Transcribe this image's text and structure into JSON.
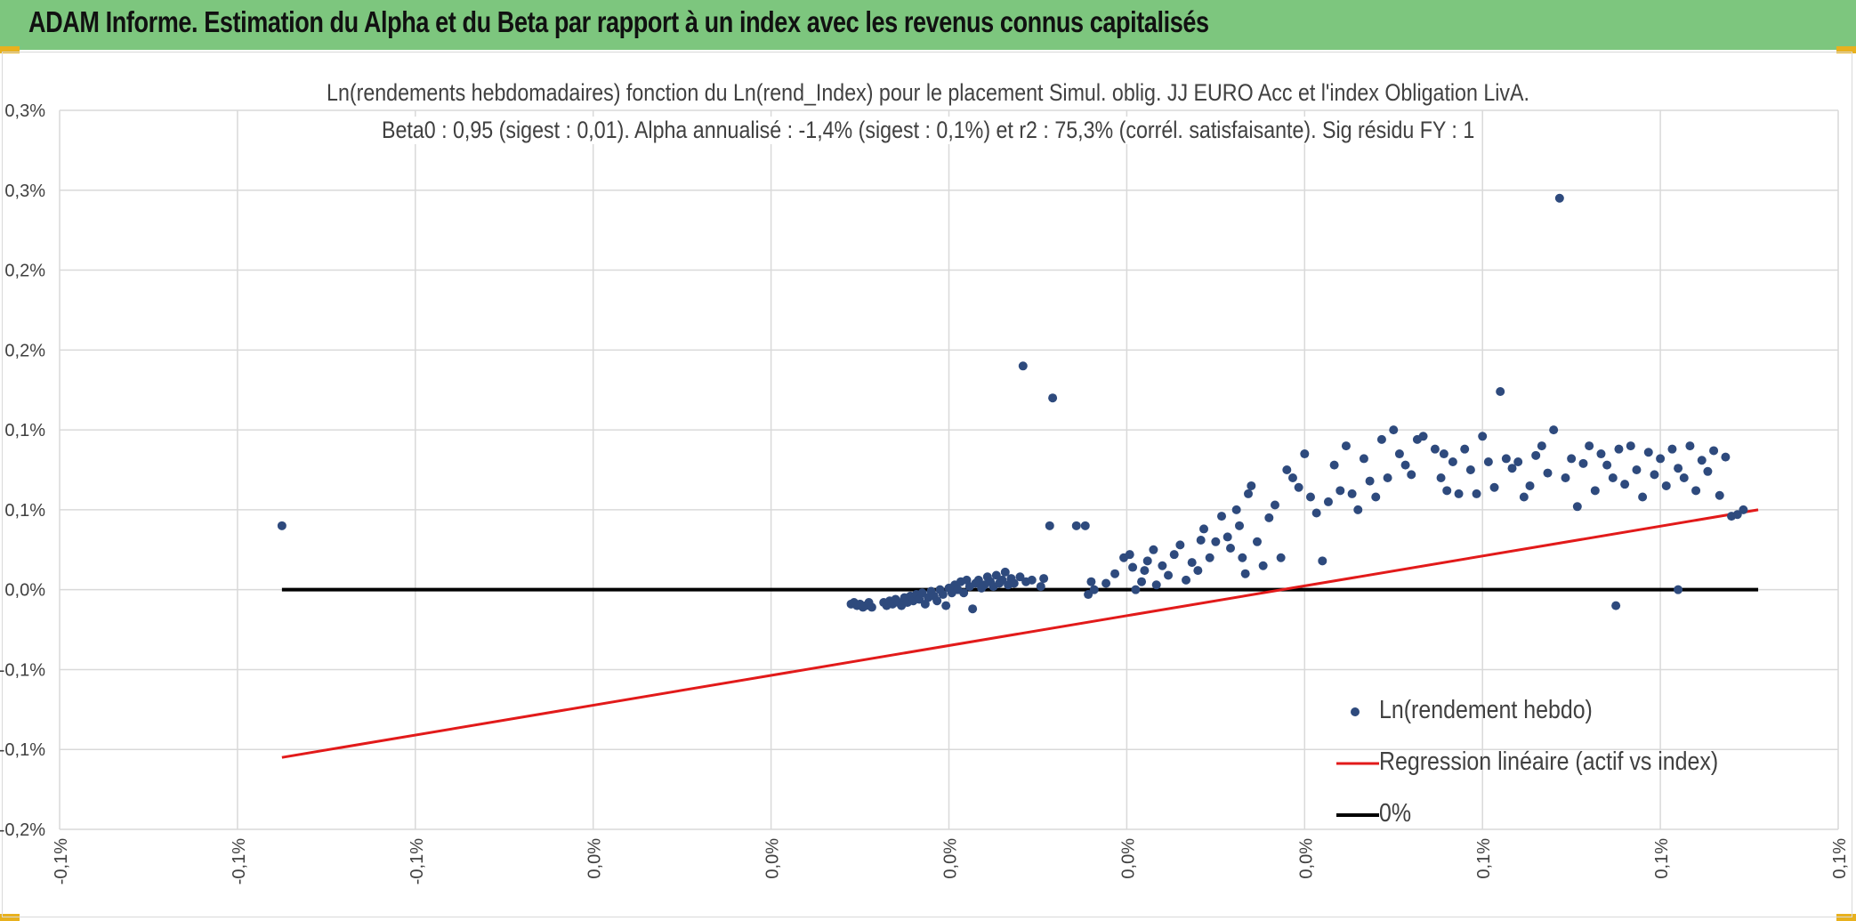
{
  "header": {
    "title": "ADAM Informe. Estimation du Alpha et du Beta par rapport à un index avec les revenus connus capitalisés"
  },
  "chart_data": {
    "type": "scatter",
    "title_line1": "Ln(rendements hebdomadaires) fonction du Ln(rend_Index) pour le placement Simul. oblig. JJ EURO Acc et l'index Obligation LivA.",
    "title_line2": "Beta0 : 0,95 (sigest : 0,01). Alpha annualisé : -1,4% (sigest : 0,1%) et r2 : 75,3% (corrél. satisfaisante). Sig résidu FY : 1",
    "xlabel": "",
    "ylabel": "",
    "xlim": [
      -0.15,
      0.15
    ],
    "ylim": [
      -0.15,
      0.3
    ],
    "x_tick_labels": [
      "-0,1%",
      "-0,1%",
      "-0,1%",
      "0,0%",
      "0,0%",
      "0,0%",
      "0,0%",
      "0,0%",
      "0,1%",
      "0,1%",
      "0,1%"
    ],
    "y_tick_labels": [
      "-0,2%",
      "-0,1%",
      "-0,1%",
      "0,0%",
      "0,1%",
      "0,1%",
      "0,2%",
      "0,2%",
      "0,3%",
      "0,3%"
    ],
    "grid": true,
    "legend_position": "bottom-right",
    "series": [
      {
        "name": "Ln(rendement hebdo)",
        "kind": "scatter",
        "color": "#2e4a7d",
        "points": [
          [
            -0.1125,
            0.04
          ],
          [
            0.0175,
            0.12
          ],
          [
            0.0125,
            0.14
          ],
          [
            0.1125,
            -0.01
          ],
          [
            0.123,
            0.0
          ],
          [
            -0.0165,
            -0.009
          ],
          [
            -0.016,
            -0.008
          ],
          [
            -0.0155,
            -0.01
          ],
          [
            -0.015,
            -0.009
          ],
          [
            -0.0145,
            -0.011
          ],
          [
            -0.014,
            -0.01
          ],
          [
            -0.0135,
            -0.008
          ],
          [
            -0.013,
            -0.011
          ],
          [
            -0.011,
            -0.008
          ],
          [
            -0.0105,
            -0.01
          ],
          [
            -0.01,
            -0.007
          ],
          [
            -0.0095,
            -0.009
          ],
          [
            -0.009,
            -0.006
          ],
          [
            -0.0085,
            -0.008
          ],
          [
            -0.008,
            -0.01
          ],
          [
            -0.0075,
            -0.005
          ],
          [
            -0.007,
            -0.008
          ],
          [
            -0.0065,
            -0.004
          ],
          [
            -0.006,
            -0.007
          ],
          [
            -0.0055,
            -0.003
          ],
          [
            -0.005,
            -0.006
          ],
          [
            -0.0045,
            -0.002
          ],
          [
            -0.004,
            -0.009
          ],
          [
            -0.0035,
            -0.005
          ],
          [
            -0.003,
            -0.001
          ],
          [
            -0.0025,
            -0.004
          ],
          [
            -0.002,
            -0.007
          ],
          [
            -0.0015,
            0.0
          ],
          [
            -0.001,
            -0.003
          ],
          [
            -0.0005,
            -0.01
          ],
          [
            0.0,
            0.001
          ],
          [
            0.0005,
            -0.002
          ],
          [
            0.001,
            0.003
          ],
          [
            0.0015,
            0.0
          ],
          [
            0.002,
            0.005
          ],
          [
            0.0025,
            -0.002
          ],
          [
            0.003,
            0.006
          ],
          [
            0.0035,
            0.002
          ],
          [
            0.004,
            -0.012
          ],
          [
            0.0045,
            0.004
          ],
          [
            0.005,
            0.006
          ],
          [
            0.0055,
            0.001
          ],
          [
            0.006,
            0.003
          ],
          [
            0.0065,
            0.008
          ],
          [
            0.007,
            0.005
          ],
          [
            0.0075,
            0.002
          ],
          [
            0.008,
            0.009
          ],
          [
            0.0085,
            0.004
          ],
          [
            0.009,
            0.006
          ],
          [
            0.0095,
            0.011
          ],
          [
            0.01,
            0.003
          ],
          [
            0.0105,
            0.007
          ],
          [
            0.011,
            0.004
          ],
          [
            0.012,
            0.008
          ],
          [
            0.013,
            0.005
          ],
          [
            0.014,
            0.006
          ],
          [
            0.0155,
            0.002
          ],
          [
            0.016,
            0.007
          ],
          [
            0.017,
            0.04
          ],
          [
            0.0215,
            0.04
          ],
          [
            0.023,
            0.04
          ],
          [
            0.0235,
            -0.003
          ],
          [
            0.024,
            0.005
          ],
          [
            0.0245,
            0.0
          ],
          [
            0.0265,
            0.004
          ],
          [
            0.028,
            0.01
          ],
          [
            0.0295,
            0.02
          ],
          [
            0.0305,
            0.022
          ],
          [
            0.031,
            0.014
          ],
          [
            0.0315,
            0.0
          ],
          [
            0.0325,
            0.005
          ],
          [
            0.033,
            0.012
          ],
          [
            0.0335,
            0.018
          ],
          [
            0.0345,
            0.025
          ],
          [
            0.035,
            0.003
          ],
          [
            0.036,
            0.015
          ],
          [
            0.037,
            0.009
          ],
          [
            0.038,
            0.022
          ],
          [
            0.039,
            0.028
          ],
          [
            0.04,
            0.006
          ],
          [
            0.041,
            0.017
          ],
          [
            0.042,
            0.012
          ],
          [
            0.0425,
            0.031
          ],
          [
            0.043,
            0.038
          ],
          [
            0.044,
            0.02
          ],
          [
            0.045,
            0.03
          ],
          [
            0.046,
            0.046
          ],
          [
            0.047,
            0.033
          ],
          [
            0.0475,
            0.026
          ],
          [
            0.0485,
            0.05
          ],
          [
            0.049,
            0.04
          ],
          [
            0.0495,
            0.02
          ],
          [
            0.05,
            0.01
          ],
          [
            0.0505,
            0.06
          ],
          [
            0.051,
            0.065
          ],
          [
            0.052,
            0.03
          ],
          [
            0.053,
            0.015
          ],
          [
            0.054,
            0.045
          ],
          [
            0.055,
            0.053
          ],
          [
            0.056,
            0.02
          ],
          [
            0.057,
            0.075
          ],
          [
            0.058,
            0.07
          ],
          [
            0.059,
            0.064
          ],
          [
            0.06,
            0.085
          ],
          [
            0.061,
            0.058
          ],
          [
            0.062,
            0.048
          ],
          [
            0.063,
            0.018
          ],
          [
            0.064,
            0.055
          ],
          [
            0.065,
            0.078
          ],
          [
            0.066,
            0.062
          ],
          [
            0.067,
            0.09
          ],
          [
            0.068,
            0.06
          ],
          [
            0.069,
            0.05
          ],
          [
            0.07,
            0.082
          ],
          [
            0.071,
            0.068
          ],
          [
            0.072,
            0.058
          ],
          [
            0.073,
            0.094
          ],
          [
            0.074,
            0.07
          ],
          [
            0.075,
            0.1
          ],
          [
            0.076,
            0.085
          ],
          [
            0.077,
            0.078
          ],
          [
            0.078,
            0.072
          ],
          [
            0.079,
            0.094
          ],
          [
            0.08,
            0.096
          ],
          [
            0.082,
            0.088
          ],
          [
            0.083,
            0.07
          ],
          [
            0.0835,
            0.085
          ],
          [
            0.084,
            0.062
          ],
          [
            0.085,
            0.08
          ],
          [
            0.086,
            0.06
          ],
          [
            0.087,
            0.088
          ],
          [
            0.088,
            0.075
          ],
          [
            0.089,
            0.06
          ],
          [
            0.09,
            0.096
          ],
          [
            0.091,
            0.08
          ],
          [
            0.092,
            0.064
          ],
          [
            0.093,
            0.124
          ],
          [
            0.094,
            0.082
          ],
          [
            0.095,
            0.076
          ],
          [
            0.096,
            0.08
          ],
          [
            0.097,
            0.058
          ],
          [
            0.098,
            0.065
          ],
          [
            0.099,
            0.084
          ],
          [
            0.1,
            0.09
          ],
          [
            0.101,
            0.073
          ],
          [
            0.102,
            0.1
          ],
          [
            0.103,
            0.245
          ],
          [
            0.104,
            0.07
          ],
          [
            0.105,
            0.082
          ],
          [
            0.106,
            0.052
          ],
          [
            0.107,
            0.079
          ],
          [
            0.108,
            0.09
          ],
          [
            0.109,
            0.062
          ],
          [
            0.11,
            0.085
          ],
          [
            0.111,
            0.078
          ],
          [
            0.112,
            0.07
          ],
          [
            0.113,
            0.088
          ],
          [
            0.114,
            0.066
          ],
          [
            0.115,
            0.09
          ],
          [
            0.116,
            0.075
          ],
          [
            0.117,
            0.058
          ],
          [
            0.118,
            0.086
          ],
          [
            0.119,
            0.072
          ],
          [
            0.12,
            0.082
          ],
          [
            0.121,
            0.065
          ],
          [
            0.122,
            0.088
          ],
          [
            0.123,
            0.076
          ],
          [
            0.124,
            0.07
          ],
          [
            0.125,
            0.09
          ],
          [
            0.126,
            0.062
          ],
          [
            0.127,
            0.081
          ],
          [
            0.128,
            0.074
          ],
          [
            0.129,
            0.087
          ],
          [
            0.13,
            0.059
          ],
          [
            0.131,
            0.083
          ],
          [
            0.132,
            0.046
          ],
          [
            0.133,
            0.047
          ],
          [
            0.134,
            0.05
          ]
        ]
      },
      {
        "name": "Regression linéaire (actif vs index)",
        "kind": "line",
        "color": "#e21a1a",
        "points": [
          [
            -0.1125,
            -0.105
          ],
          [
            0.1365,
            0.05
          ]
        ]
      },
      {
        "name": "0%",
        "kind": "line",
        "color": "#000000",
        "points": [
          [
            -0.1125,
            0.0
          ],
          [
            0.1365,
            0.0
          ]
        ]
      }
    ]
  }
}
